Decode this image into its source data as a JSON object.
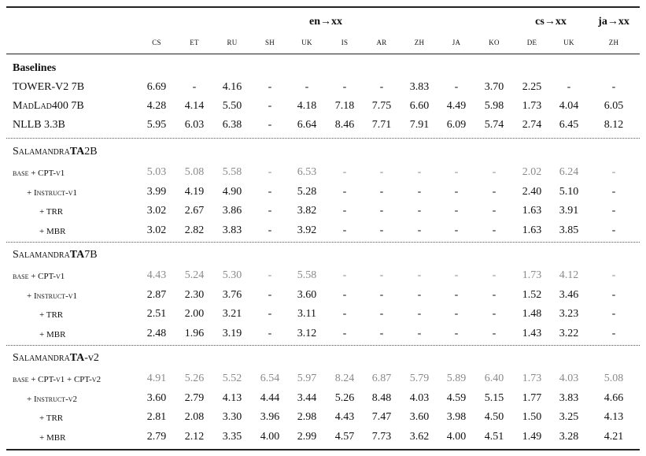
{
  "columns": [
    "cs",
    "et",
    "ru",
    "sh",
    "uk",
    "is",
    "ar",
    "zh",
    "ja",
    "ko",
    "de",
    "uk",
    "zh"
  ],
  "groups": [
    {
      "label": "en→xx",
      "x": 0
    },
    {
      "label": "cs→xx",
      "x": 0
    },
    {
      "label": "ja→xx",
      "x": 0
    }
  ],
  "baselines_title": "Baselines",
  "baselines": [
    {
      "label": "TOWER-V2 7B",
      "values": [
        "6.69",
        "-",
        "4.16",
        "-",
        "-",
        "-",
        "-",
        "3.83",
        "-",
        "3.70",
        "2.25",
        "-",
        "-"
      ]
    },
    {
      "label": "MadLad400 7B",
      "values": [
        "4.28",
        "4.14",
        "5.50",
        "-",
        "4.18",
        "7.18",
        "7.75",
        "6.60",
        "4.49",
        "5.98",
        "1.73",
        "4.04",
        "6.05"
      ]
    },
    {
      "label": "NLLB 3.3B",
      "values": [
        "5.95",
        "6.03",
        "6.38",
        "-",
        "6.64",
        "8.46",
        "7.71",
        "7.91",
        "6.09",
        "5.74",
        "2.74",
        "6.45",
        "8.12"
      ]
    }
  ],
  "sections": [
    {
      "title_prefix": "Salamandra",
      "title_bold": "TA",
      "title_suffix": "2B",
      "rows": [
        {
          "label": "base + CPT-v1",
          "indent": 0,
          "gray": true,
          "values": [
            "5.03",
            "5.08",
            "5.58",
            "-",
            "6.53",
            "-",
            "-",
            "-",
            "-",
            "-",
            "2.02",
            "6.24",
            "-"
          ]
        },
        {
          "label": "+ Instruct-v1",
          "indent": 1,
          "gray": false,
          "values": [
            "3.99",
            "4.19",
            "4.90",
            "-",
            "5.28",
            "-",
            "-",
            "-",
            "-",
            "-",
            "2.40",
            "5.10",
            "-"
          ]
        },
        {
          "label": "+ TRR",
          "indent": 2,
          "gray": false,
          "values": [
            "3.02",
            "2.67",
            "3.86",
            "-",
            "3.82",
            "-",
            "-",
            "-",
            "-",
            "-",
            "1.63",
            "3.91",
            "-"
          ]
        },
        {
          "label": "+ MBR",
          "indent": 2,
          "gray": false,
          "values": [
            "3.02",
            "2.82",
            "3.83",
            "-",
            "3.92",
            "-",
            "-",
            "-",
            "-",
            "-",
            "1.63",
            "3.85",
            "-"
          ]
        }
      ]
    },
    {
      "title_prefix": "Salamandra",
      "title_bold": "TA",
      "title_suffix": "7B",
      "rows": [
        {
          "label": "base + CPT-v1",
          "indent": 0,
          "gray": true,
          "values": [
            "4.43",
            "5.24",
            "5.30",
            "-",
            "5.58",
            "-",
            "-",
            "-",
            "-",
            "-",
            "1.73",
            "4.12",
            "-"
          ]
        },
        {
          "label": "+ Instruct-v1",
          "indent": 1,
          "gray": false,
          "values": [
            "2.87",
            "2.30",
            "3.76",
            "-",
            "3.60",
            "-",
            "-",
            "-",
            "-",
            "-",
            "1.52",
            "3.46",
            "-"
          ]
        },
        {
          "label": "+ TRR",
          "indent": 2,
          "gray": false,
          "values": [
            "2.51",
            "2.00",
            "3.21",
            "-",
            "3.11",
            "-",
            "-",
            "-",
            "-",
            "-",
            "1.48",
            "3.23",
            "-"
          ]
        },
        {
          "label": "+ MBR",
          "indent": 2,
          "gray": false,
          "values": [
            "2.48",
            "1.96",
            "3.19",
            "-",
            "3.12",
            "-",
            "-",
            "-",
            "-",
            "-",
            "1.43",
            "3.22",
            "-"
          ]
        }
      ]
    },
    {
      "title_prefix": "Salamandra",
      "title_bold": "TA",
      "title_suffix": "-v2",
      "rows": [
        {
          "label": "base + CPT-v1 + CPT-v2",
          "indent": 0,
          "gray": true,
          "values": [
            "4.91",
            "5.26",
            "5.52",
            "6.54",
            "5.97",
            "8.24",
            "6.87",
            "5.79",
            "5.89",
            "6.40",
            "1.73",
            "4.03",
            "5.08"
          ]
        },
        {
          "label": "+ Instruct-v2",
          "indent": 1,
          "gray": false,
          "values": [
            "3.60",
            "2.79",
            "4.13",
            "4.44",
            "3.44",
            "5.26",
            "8.48",
            "4.03",
            "4.59",
            "5.15",
            "1.77",
            "3.83",
            "4.66"
          ]
        },
        {
          "label": "+ TRR",
          "indent": 2,
          "gray": false,
          "values": [
            "2.81",
            "2.08",
            "3.30",
            "3.96",
            "2.98",
            "4.43",
            "7.47",
            "3.60",
            "3.98",
            "4.50",
            "1.50",
            "3.25",
            "4.13"
          ]
        },
        {
          "label": "+ MBR",
          "indent": 2,
          "gray": false,
          "values": [
            "2.79",
            "2.12",
            "3.35",
            "4.00",
            "2.99",
            "4.57",
            "7.73",
            "3.62",
            "4.00",
            "4.51",
            "1.49",
            "3.28",
            "4.21"
          ]
        }
      ]
    }
  ]
}
